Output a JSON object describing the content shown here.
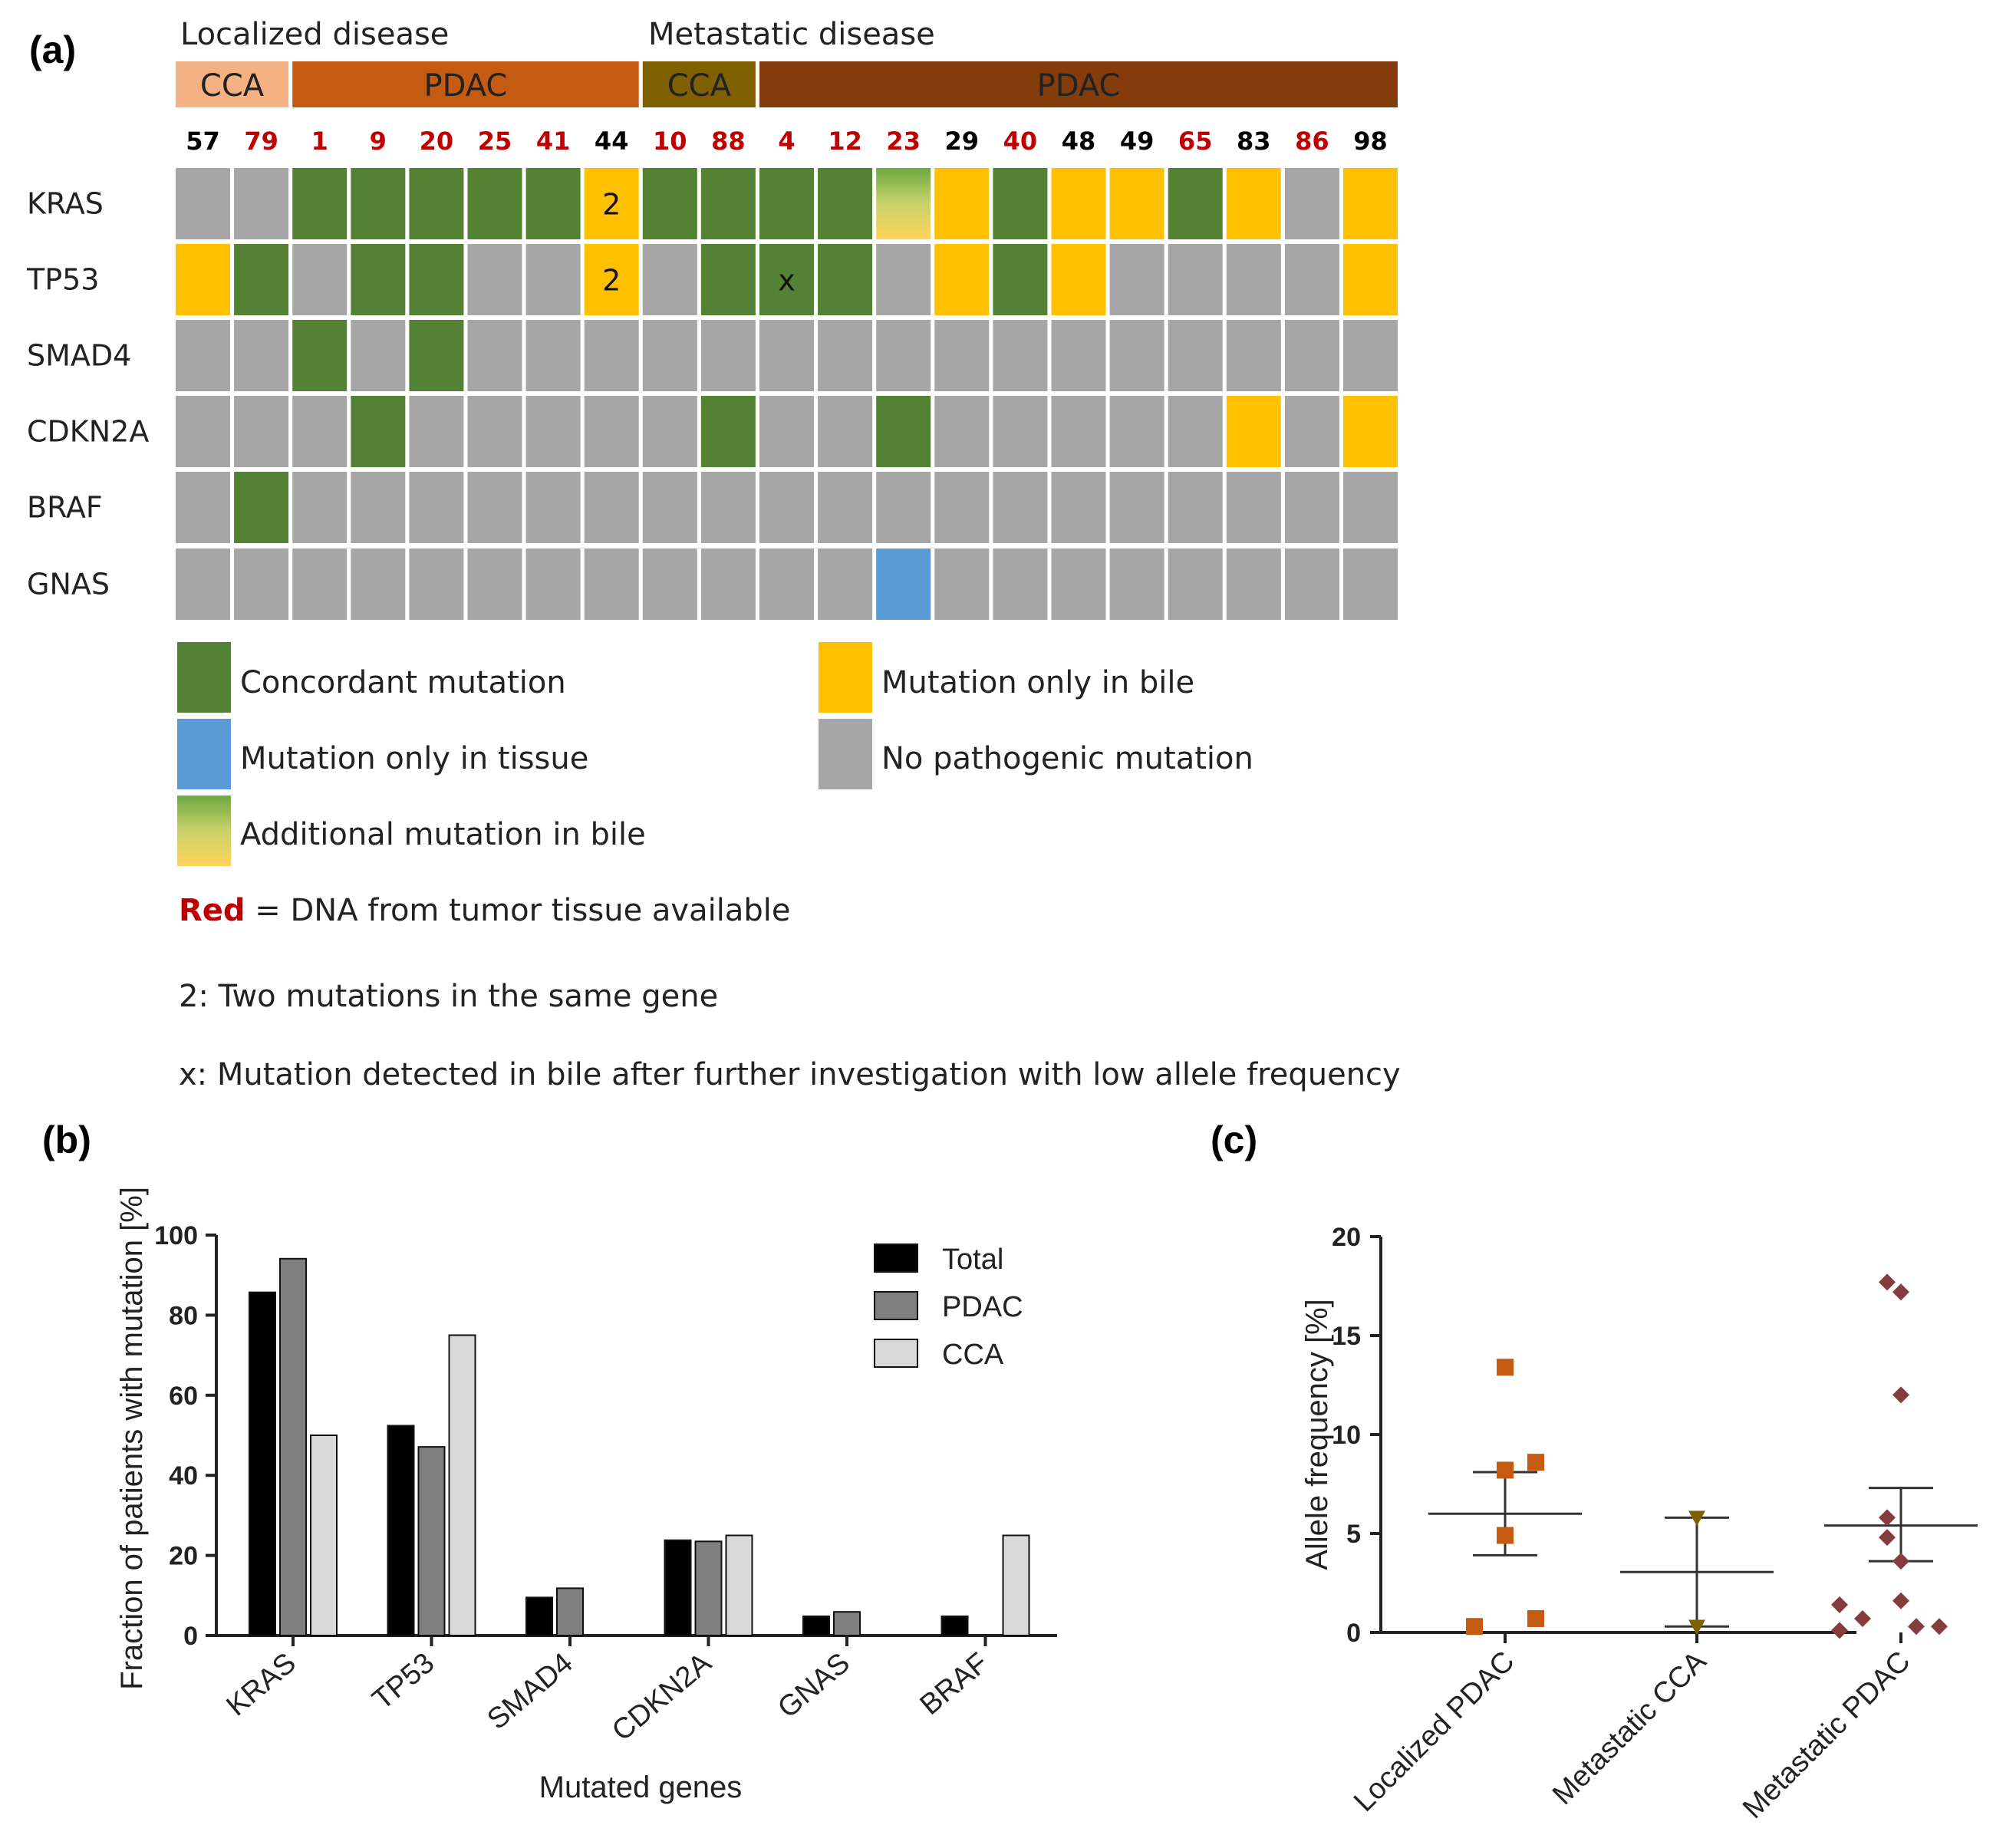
{
  "panel_a": {
    "label": "(a)",
    "section_headers": [
      "Localized disease",
      "Metastatic disease"
    ],
    "groups": [
      {
        "label": "CCA",
        "color": "#F4B183"
      },
      {
        "label": "PDAC",
        "color": "#C55A11"
      },
      {
        "label": "CCA",
        "color": "#7F6000"
      },
      {
        "label": "PDAC",
        "color": "#843C0C"
      }
    ],
    "patients": [
      {
        "id": "57",
        "red": false
      },
      {
        "id": "79",
        "red": true
      },
      {
        "id": "1",
        "red": true
      },
      {
        "id": "9",
        "red": true
      },
      {
        "id": "20",
        "red": true
      },
      {
        "id": "25",
        "red": true
      },
      {
        "id": "41",
        "red": true
      },
      {
        "id": "44",
        "red": false
      },
      {
        "id": "10",
        "red": true
      },
      {
        "id": "88",
        "red": true
      },
      {
        "id": "4",
        "red": true
      },
      {
        "id": "12",
        "red": true
      },
      {
        "id": "23",
        "red": true
      },
      {
        "id": "29",
        "red": false
      },
      {
        "id": "40",
        "red": true
      },
      {
        "id": "48",
        "red": false
      },
      {
        "id": "49",
        "red": false
      },
      {
        "id": "65",
        "red": true
      },
      {
        "id": "83",
        "red": false
      },
      {
        "id": "86",
        "red": true
      },
      {
        "id": "98",
        "red": false
      }
    ],
    "genes": [
      "KRAS",
      "TP53",
      "SMAD4",
      "CDKN2A",
      "BRAF",
      "GNAS"
    ],
    "matrix": [
      [
        "N",
        "N",
        "C",
        "C",
        "C",
        "C",
        "C",
        "B",
        "C",
        "C",
        "C",
        "C",
        "A",
        "B",
        "C",
        "B",
        "B",
        "C",
        "B",
        "N",
        "B"
      ],
      [
        "B",
        "C",
        "N",
        "C",
        "C",
        "N",
        "N",
        "B",
        "N",
        "C",
        "C",
        "C",
        "N",
        "B",
        "C",
        "B",
        "N",
        "N",
        "N",
        "N",
        "B"
      ],
      [
        "N",
        "N",
        "C",
        "N",
        "C",
        "N",
        "N",
        "N",
        "N",
        "N",
        "N",
        "N",
        "N",
        "N",
        "N",
        "N",
        "N",
        "N",
        "N",
        "N",
        "N"
      ],
      [
        "N",
        "N",
        "N",
        "C",
        "N",
        "N",
        "N",
        "N",
        "N",
        "C",
        "N",
        "N",
        "C",
        "N",
        "N",
        "N",
        "N",
        "N",
        "B",
        "N",
        "B"
      ],
      [
        "N",
        "C",
        "N",
        "N",
        "N",
        "N",
        "N",
        "N",
        "N",
        "N",
        "N",
        "N",
        "N",
        "N",
        "N",
        "N",
        "N",
        "N",
        "N",
        "N",
        "N"
      ],
      [
        "N",
        "N",
        "N",
        "N",
        "N",
        "N",
        "N",
        "N",
        "N",
        "N",
        "N",
        "N",
        "T",
        "N",
        "N",
        "N",
        "N",
        "N",
        "N",
        "N",
        "N"
      ]
    ],
    "cell_marks": [
      {
        "gene": 0,
        "patient": 7,
        "text": "2"
      },
      {
        "gene": 1,
        "patient": 7,
        "text": "2"
      },
      {
        "gene": 1,
        "patient": 10,
        "text": "x"
      }
    ],
    "colors": {
      "concordant": "#548235",
      "bile_only": "#FFC000",
      "tissue_only": "#5B9BD5",
      "none": "#A6A6A6",
      "red_text": "#C00000"
    },
    "legend": {
      "concordant": "Concordant mutation",
      "bile_only": "Mutation only in bile",
      "tissue_only": "Mutation only in tissue",
      "none": "No pathogenic mutation",
      "additional": "Additional mutation in bile"
    },
    "notes": {
      "red_word": "Red",
      "red_rest": " = DNA from tumor tissue available",
      "two": "2: Two mutations in the same gene",
      "x": "x: Mutation detected in bile after further investigation with low allele frequency"
    }
  },
  "panel_b": {
    "label": "(b)",
    "chart_data": {
      "type": "bar",
      "categories": [
        "KRAS",
        "TP53",
        "SMAD4",
        "CDKN2A",
        "GNAS",
        "BRAF"
      ],
      "series": [
        {
          "name": "Total",
          "values": [
            85.7,
            52.4,
            9.5,
            23.8,
            4.8,
            4.8
          ],
          "color": "#000000"
        },
        {
          "name": "PDAC",
          "values": [
            94.1,
            47.1,
            11.8,
            23.5,
            5.9,
            0
          ],
          "color": "#7F7F7F"
        },
        {
          "name": "CCA",
          "values": [
            50,
            75,
            0,
            25,
            0,
            25
          ],
          "color": "#D9D9D9"
        }
      ],
      "ylim": [
        0,
        100
      ],
      "yticks": [
        "0",
        "20",
        "40",
        "60",
        "80",
        "100"
      ],
      "xlabel": "Mutated genes",
      "ylabel": "Fraction of patients with mutation [%]",
      "legend_position": "top-right"
    }
  },
  "panel_c": {
    "label": "(c)",
    "chart_data": {
      "type": "scatter",
      "categories": [
        "Localized PDAC",
        "Metastatic CCA",
        "Metastatic PDAC"
      ],
      "groups": [
        {
          "name": "Localized PDAC",
          "marker": "square",
          "color": "#C55A11",
          "values": [
            13.4,
            8.6,
            8.2,
            4.9,
            0.7,
            0.3
          ],
          "mean": 6.0,
          "sem_low": 3.9,
          "sem_high": 8.1
        },
        {
          "name": "Metastatic CCA",
          "marker": "triangle-down",
          "color": "#7F6000",
          "values": [
            5.8,
            0.3
          ],
          "mean": 3.05,
          "sem_low": 0.3,
          "sem_high": 5.8
        },
        {
          "name": "Metastatic PDAC",
          "marker": "diamond",
          "color": "#843C3C",
          "values": [
            17.7,
            17.2,
            12.0,
            5.8,
            4.8,
            3.6,
            1.6,
            1.4,
            0.7,
            0.3,
            0.3,
            0.1
          ],
          "mean": 5.4,
          "sem_low": 3.6,
          "sem_high": 7.3
        }
      ],
      "ylim": [
        0,
        20
      ],
      "yticks": [
        "0",
        "5",
        "10",
        "15",
        "20"
      ],
      "ylabel": "Allele frequency [%]"
    }
  }
}
